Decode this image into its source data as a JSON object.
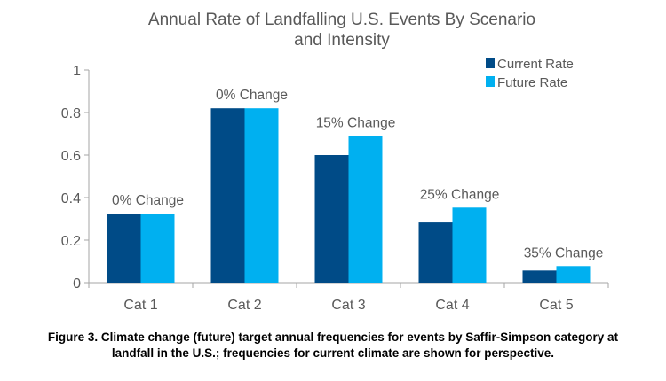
{
  "chart_data": {
    "type": "bar",
    "title_lines": [
      "Annual Rate of Landfalling U.S. Events By Scenario",
      "and Intensity"
    ],
    "categories": [
      "Cat 1",
      "Cat 2",
      "Cat 3",
      "Cat 4",
      "Cat 5"
    ],
    "series": [
      {
        "name": "Current Rate",
        "color": "#004b87",
        "values": [
          0.325,
          0.82,
          0.6,
          0.283,
          0.057
        ]
      },
      {
        "name": "Future Rate",
        "color": "#00b0f0",
        "values": [
          0.325,
          0.82,
          0.69,
          0.353,
          0.078
        ]
      }
    ],
    "annotations": [
      "0% Change",
      "0% Change",
      "15% Change",
      "25% Change",
      "35% Change"
    ],
    "ylim": [
      0,
      1
    ],
    "yticks": [
      "0",
      "0.2",
      "0.4",
      "0.6",
      "0.8",
      "1"
    ],
    "grid": false,
    "legend": "top-right"
  },
  "caption": {
    "line1": "Figure 3. Climate change (future) target annual frequencies for events by Saffir-Simpson category at",
    "line2": "landfall in the U.S.; frequencies for current climate are shown for perspective."
  }
}
